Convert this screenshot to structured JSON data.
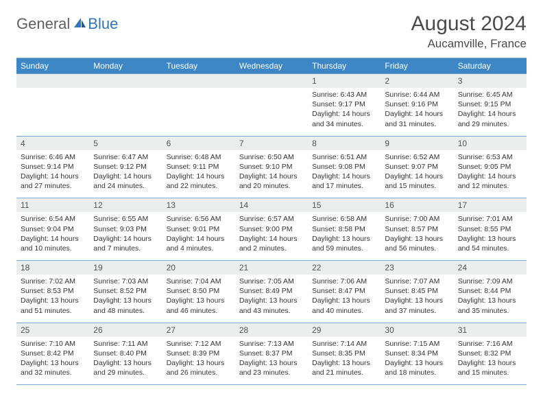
{
  "logo": {
    "word1": "General",
    "word2": "Blue"
  },
  "title": "August 2024",
  "location": "Aucamville, France",
  "dow": [
    "Sunday",
    "Monday",
    "Tuesday",
    "Wednesday",
    "Thursday",
    "Friday",
    "Saturday"
  ],
  "colors": {
    "header_bg": "#3d87c7",
    "header_text": "#ffffff",
    "daynum_bg": "#eceded",
    "border": "#7aa9d4",
    "logo_gray": "#5f5f5f",
    "logo_blue": "#2f76bb"
  },
  "weeks": [
    {
      "nums": [
        "",
        "",
        "",
        "",
        "1",
        "2",
        "3"
      ],
      "cells": [
        {},
        {},
        {},
        {},
        {
          "sunrise": "Sunrise: 6:43 AM",
          "sunset": "Sunset: 9:17 PM",
          "day1": "Daylight: 14 hours",
          "day2": "and 34 minutes."
        },
        {
          "sunrise": "Sunrise: 6:44 AM",
          "sunset": "Sunset: 9:16 PM",
          "day1": "Daylight: 14 hours",
          "day2": "and 31 minutes."
        },
        {
          "sunrise": "Sunrise: 6:45 AM",
          "sunset": "Sunset: 9:15 PM",
          "day1": "Daylight: 14 hours",
          "day2": "and 29 minutes."
        }
      ]
    },
    {
      "nums": [
        "4",
        "5",
        "6",
        "7",
        "8",
        "9",
        "10"
      ],
      "cells": [
        {
          "sunrise": "Sunrise: 6:46 AM",
          "sunset": "Sunset: 9:14 PM",
          "day1": "Daylight: 14 hours",
          "day2": "and 27 minutes."
        },
        {
          "sunrise": "Sunrise: 6:47 AM",
          "sunset": "Sunset: 9:12 PM",
          "day1": "Daylight: 14 hours",
          "day2": "and 24 minutes."
        },
        {
          "sunrise": "Sunrise: 6:48 AM",
          "sunset": "Sunset: 9:11 PM",
          "day1": "Daylight: 14 hours",
          "day2": "and 22 minutes."
        },
        {
          "sunrise": "Sunrise: 6:50 AM",
          "sunset": "Sunset: 9:10 PM",
          "day1": "Daylight: 14 hours",
          "day2": "and 20 minutes."
        },
        {
          "sunrise": "Sunrise: 6:51 AM",
          "sunset": "Sunset: 9:08 PM",
          "day1": "Daylight: 14 hours",
          "day2": "and 17 minutes."
        },
        {
          "sunrise": "Sunrise: 6:52 AM",
          "sunset": "Sunset: 9:07 PM",
          "day1": "Daylight: 14 hours",
          "day2": "and 15 minutes."
        },
        {
          "sunrise": "Sunrise: 6:53 AM",
          "sunset": "Sunset: 9:05 PM",
          "day1": "Daylight: 14 hours",
          "day2": "and 12 minutes."
        }
      ]
    },
    {
      "nums": [
        "11",
        "12",
        "13",
        "14",
        "15",
        "16",
        "17"
      ],
      "cells": [
        {
          "sunrise": "Sunrise: 6:54 AM",
          "sunset": "Sunset: 9:04 PM",
          "day1": "Daylight: 14 hours",
          "day2": "and 10 minutes."
        },
        {
          "sunrise": "Sunrise: 6:55 AM",
          "sunset": "Sunset: 9:03 PM",
          "day1": "Daylight: 14 hours",
          "day2": "and 7 minutes."
        },
        {
          "sunrise": "Sunrise: 6:56 AM",
          "sunset": "Sunset: 9:01 PM",
          "day1": "Daylight: 14 hours",
          "day2": "and 4 minutes."
        },
        {
          "sunrise": "Sunrise: 6:57 AM",
          "sunset": "Sunset: 9:00 PM",
          "day1": "Daylight: 14 hours",
          "day2": "and 2 minutes."
        },
        {
          "sunrise": "Sunrise: 6:58 AM",
          "sunset": "Sunset: 8:58 PM",
          "day1": "Daylight: 13 hours",
          "day2": "and 59 minutes."
        },
        {
          "sunrise": "Sunrise: 7:00 AM",
          "sunset": "Sunset: 8:57 PM",
          "day1": "Daylight: 13 hours",
          "day2": "and 56 minutes."
        },
        {
          "sunrise": "Sunrise: 7:01 AM",
          "sunset": "Sunset: 8:55 PM",
          "day1": "Daylight: 13 hours",
          "day2": "and 54 minutes."
        }
      ]
    },
    {
      "nums": [
        "18",
        "19",
        "20",
        "21",
        "22",
        "23",
        "24"
      ],
      "cells": [
        {
          "sunrise": "Sunrise: 7:02 AM",
          "sunset": "Sunset: 8:53 PM",
          "day1": "Daylight: 13 hours",
          "day2": "and 51 minutes."
        },
        {
          "sunrise": "Sunrise: 7:03 AM",
          "sunset": "Sunset: 8:52 PM",
          "day1": "Daylight: 13 hours",
          "day2": "and 48 minutes."
        },
        {
          "sunrise": "Sunrise: 7:04 AM",
          "sunset": "Sunset: 8:50 PM",
          "day1": "Daylight: 13 hours",
          "day2": "and 46 minutes."
        },
        {
          "sunrise": "Sunrise: 7:05 AM",
          "sunset": "Sunset: 8:49 PM",
          "day1": "Daylight: 13 hours",
          "day2": "and 43 minutes."
        },
        {
          "sunrise": "Sunrise: 7:06 AM",
          "sunset": "Sunset: 8:47 PM",
          "day1": "Daylight: 13 hours",
          "day2": "and 40 minutes."
        },
        {
          "sunrise": "Sunrise: 7:07 AM",
          "sunset": "Sunset: 8:45 PM",
          "day1": "Daylight: 13 hours",
          "day2": "and 37 minutes."
        },
        {
          "sunrise": "Sunrise: 7:09 AM",
          "sunset": "Sunset: 8:44 PM",
          "day1": "Daylight: 13 hours",
          "day2": "and 35 minutes."
        }
      ]
    },
    {
      "nums": [
        "25",
        "26",
        "27",
        "28",
        "29",
        "30",
        "31"
      ],
      "cells": [
        {
          "sunrise": "Sunrise: 7:10 AM",
          "sunset": "Sunset: 8:42 PM",
          "day1": "Daylight: 13 hours",
          "day2": "and 32 minutes."
        },
        {
          "sunrise": "Sunrise: 7:11 AM",
          "sunset": "Sunset: 8:40 PM",
          "day1": "Daylight: 13 hours",
          "day2": "and 29 minutes."
        },
        {
          "sunrise": "Sunrise: 7:12 AM",
          "sunset": "Sunset: 8:39 PM",
          "day1": "Daylight: 13 hours",
          "day2": "and 26 minutes."
        },
        {
          "sunrise": "Sunrise: 7:13 AM",
          "sunset": "Sunset: 8:37 PM",
          "day1": "Daylight: 13 hours",
          "day2": "and 23 minutes."
        },
        {
          "sunrise": "Sunrise: 7:14 AM",
          "sunset": "Sunset: 8:35 PM",
          "day1": "Daylight: 13 hours",
          "day2": "and 21 minutes."
        },
        {
          "sunrise": "Sunrise: 7:15 AM",
          "sunset": "Sunset: 8:34 PM",
          "day1": "Daylight: 13 hours",
          "day2": "and 18 minutes."
        },
        {
          "sunrise": "Sunrise: 7:16 AM",
          "sunset": "Sunset: 8:32 PM",
          "day1": "Daylight: 13 hours",
          "day2": "and 15 minutes."
        }
      ]
    }
  ]
}
